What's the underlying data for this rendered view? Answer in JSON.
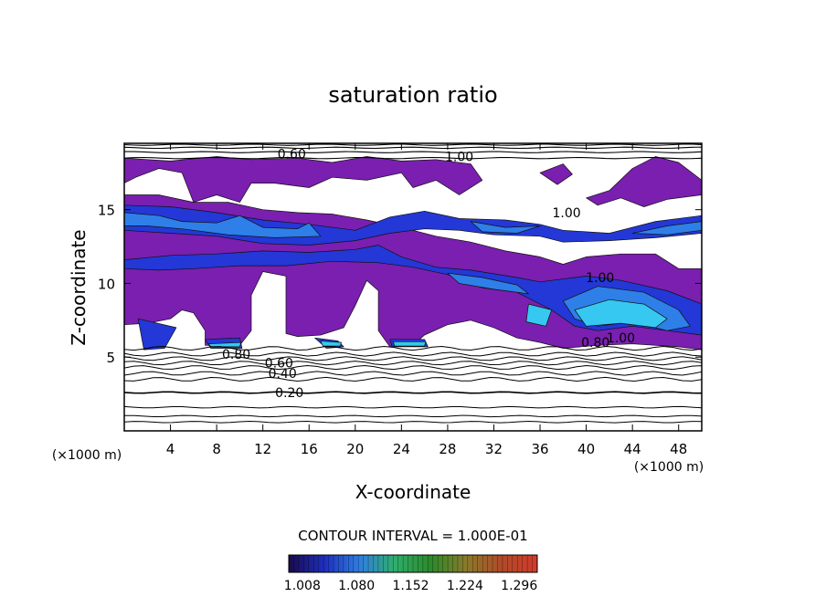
{
  "chart_data": {
    "type": "heatmap",
    "title": "saturation ratio",
    "xlabel": "X-coordinate",
    "ylabel": "Z-coordinate",
    "x_unit": "(×1000 m)",
    "z_unit": "(×1000 m)",
    "xlim": [
      0,
      50
    ],
    "ylim": [
      0,
      19.5
    ],
    "x_ticks": [
      "4",
      "8",
      "12",
      "16",
      "20",
      "24",
      "28",
      "32",
      "36",
      "40",
      "44",
      "48"
    ],
    "y_ticks": [
      "5",
      "10",
      "15"
    ],
    "contour_interval_text": "CONTOUR INTERVAL = 1.000E-01",
    "colorbar_ticks": [
      "1.008",
      "1.080",
      "1.152",
      "1.224",
      "1.296"
    ],
    "colorbar_range": [
      0.99,
      1.32
    ],
    "colorscale": [
      "#1a0a4a",
      "#1d2fbf",
      "#2f7fe0",
      "#2fae6a",
      "#2a8a2a",
      "#8a7a2a",
      "#b04a2a",
      "#d23b2b"
    ],
    "fill_colors": {
      "level_1": "#7a1fb0",
      "level_2": "#2338d6",
      "level_3": "#2f7fe8",
      "level_4": "#36c8f0"
    },
    "contour_labels": [
      {
        "text": "0.20",
        "x": 14.3,
        "z": 2.6
      },
      {
        "text": "0.40",
        "x": 13.7,
        "z": 3.9
      },
      {
        "text": "0.60",
        "x": 13.4,
        "z": 4.6
      },
      {
        "text": "0.80",
        "x": 9.7,
        "z": 5.2
      },
      {
        "text": "0.60",
        "x": 14.5,
        "z": 18.8
      },
      {
        "text": "0.80",
        "x": 40.8,
        "z": 6.0
      },
      {
        "text": "1.00",
        "x": 43.0,
        "z": 6.3
      },
      {
        "text": "1.00",
        "x": 38.3,
        "z": 14.8
      },
      {
        "text": "1.00",
        "x": 41.2,
        "z": 10.4
      },
      {
        "text": "1.00",
        "x": 29.0,
        "z": 18.6
      }
    ],
    "regions": [
      {
        "level": 1,
        "pts": [
          [
            0,
            18.5
          ],
          [
            4,
            18.3
          ],
          [
            8,
            18.6
          ],
          [
            11,
            18.4
          ],
          [
            15,
            18.5
          ],
          [
            18,
            18.2
          ],
          [
            21,
            18.6
          ],
          [
            24,
            18.3
          ],
          [
            27,
            18.4
          ],
          [
            30,
            18.1
          ],
          [
            31,
            17
          ],
          [
            29,
            16
          ],
          [
            27,
            17
          ],
          [
            25,
            16.5
          ],
          [
            24,
            17.5
          ],
          [
            21,
            17
          ],
          [
            18,
            17.2
          ],
          [
            16,
            16.5
          ],
          [
            13,
            16.8
          ],
          [
            11,
            16.8
          ],
          [
            10,
            15.5
          ],
          [
            8,
            16
          ],
          [
            6,
            15.5
          ],
          [
            5,
            17.5
          ],
          [
            3,
            17.8
          ],
          [
            1,
            17.2
          ],
          [
            0,
            16.8
          ]
        ]
      },
      {
        "level": 1,
        "pts": [
          [
            0,
            16
          ],
          [
            3,
            16
          ],
          [
            6,
            15.5
          ],
          [
            9,
            15.5
          ],
          [
            12,
            15
          ],
          [
            15,
            14.8
          ],
          [
            18,
            14.7
          ],
          [
            21,
            14.3
          ],
          [
            24,
            13.8
          ],
          [
            27,
            13.2
          ],
          [
            30,
            12.8
          ],
          [
            33,
            12.2
          ],
          [
            36,
            11.8
          ],
          [
            38,
            11.3
          ],
          [
            40,
            11.8
          ],
          [
            43,
            12
          ],
          [
            46,
            12
          ],
          [
            48,
            11
          ],
          [
            50,
            11
          ],
          [
            50,
            5.5
          ],
          [
            48,
            5.7
          ],
          [
            44,
            5.9
          ],
          [
            41,
            5.8
          ],
          [
            38,
            5.6
          ],
          [
            36,
            6
          ],
          [
            34,
            6.3
          ],
          [
            32,
            7
          ],
          [
            30,
            7.5
          ],
          [
            28,
            7.2
          ],
          [
            26,
            6.5
          ],
          [
            25,
            5.8
          ],
          [
            23,
            5.7
          ],
          [
            22,
            6.8
          ],
          [
            22,
            9.5
          ],
          [
            21,
            10.2
          ],
          [
            20,
            8.5
          ],
          [
            19,
            7
          ],
          [
            17,
            6.5
          ],
          [
            15,
            6.4
          ],
          [
            14,
            6.6
          ],
          [
            14,
            10.5
          ],
          [
            12,
            10.8
          ],
          [
            11,
            9.2
          ],
          [
            11,
            6.8
          ],
          [
            10,
            5.8
          ],
          [
            7,
            5.8
          ],
          [
            7,
            6.8
          ],
          [
            6,
            8
          ],
          [
            5,
            8.2
          ],
          [
            4,
            7.6
          ],
          [
            2,
            7.3
          ],
          [
            0,
            7.2
          ]
        ]
      },
      {
        "level": 1,
        "pts": [
          [
            40,
            15.8
          ],
          [
            42,
            16.3
          ],
          [
            44,
            17.8
          ],
          [
            46,
            18.6
          ],
          [
            48,
            18.2
          ],
          [
            50,
            17
          ],
          [
            50,
            16
          ],
          [
            47,
            15.7
          ],
          [
            45,
            15.2
          ],
          [
            43,
            15.8
          ],
          [
            41,
            15.3
          ]
        ]
      },
      {
        "level": 1,
        "pts": [
          [
            36,
            17.5
          ],
          [
            38,
            18.1
          ],
          [
            38.8,
            17.4
          ],
          [
            37.5,
            16.7
          ]
        ]
      },
      {
        "level": 2,
        "pts": [
          [
            0,
            15.3
          ],
          [
            4,
            15.2
          ],
          [
            8,
            14.8
          ],
          [
            12,
            14.3
          ],
          [
            16,
            14
          ],
          [
            20,
            13.6
          ],
          [
            23,
            14.5
          ],
          [
            26,
            14.9
          ],
          [
            29,
            14.4
          ],
          [
            33,
            14.3
          ],
          [
            36,
            14
          ],
          [
            38,
            13.6
          ],
          [
            42,
            13.4
          ],
          [
            46,
            14.2
          ],
          [
            50,
            14.6
          ],
          [
            50,
            13.4
          ],
          [
            46,
            13.1
          ],
          [
            42,
            12.9
          ],
          [
            38,
            12.8
          ],
          [
            36,
            13.2
          ],
          [
            32,
            13.3
          ],
          [
            29,
            13.6
          ],
          [
            26,
            13.7
          ],
          [
            23,
            13.4
          ],
          [
            20,
            12.9
          ],
          [
            16,
            12.6
          ],
          [
            12,
            12.7
          ],
          [
            8,
            13.2
          ],
          [
            4,
            13.4
          ],
          [
            0,
            13.6
          ]
        ]
      },
      {
        "level": 2,
        "pts": [
          [
            0,
            11.6
          ],
          [
            4,
            11.9
          ],
          [
            8,
            12
          ],
          [
            12,
            12.2
          ],
          [
            16,
            12.1
          ],
          [
            20,
            12.3
          ],
          [
            22,
            12.6
          ],
          [
            24,
            11.8
          ],
          [
            27,
            11.1
          ],
          [
            30,
            10.9
          ],
          [
            34,
            10.4
          ],
          [
            36,
            10.1
          ],
          [
            40,
            10.5
          ],
          [
            43,
            10.2
          ],
          [
            47,
            9.5
          ],
          [
            50,
            8.6
          ],
          [
            50,
            6.5
          ],
          [
            47,
            6.8
          ],
          [
            44,
            7.1
          ],
          [
            41,
            6.8
          ],
          [
            39,
            7.1
          ],
          [
            37,
            8.2
          ],
          [
            34,
            9.4
          ],
          [
            31,
            9.7
          ],
          [
            28,
            10.6
          ],
          [
            25,
            11.1
          ],
          [
            22,
            11.4
          ],
          [
            18,
            11.5
          ],
          [
            14,
            11.2
          ],
          [
            10,
            11.2
          ],
          [
            6,
            11
          ],
          [
            3,
            10.9
          ],
          [
            0,
            11
          ]
        ]
      },
      {
        "level": 2,
        "pts": [
          [
            1.2,
            7.6
          ],
          [
            1.7,
            5.5
          ],
          [
            3.5,
            5.6
          ],
          [
            4.5,
            7.0
          ]
        ]
      },
      {
        "level": 2,
        "pts": [
          [
            7,
            6.2
          ],
          [
            10,
            6.3
          ],
          [
            10.2,
            5.6
          ],
          [
            7.5,
            5.6
          ]
        ]
      },
      {
        "level": 2,
        "pts": [
          [
            16.5,
            6.3
          ],
          [
            18.5,
            6.1
          ],
          [
            19,
            5.7
          ],
          [
            17.5,
            5.6
          ]
        ]
      },
      {
        "level": 2,
        "pts": [
          [
            23,
            6.2
          ],
          [
            26,
            6.2
          ],
          [
            26.3,
            5.7
          ],
          [
            23.2,
            5.7
          ]
        ]
      },
      {
        "level": 3,
        "pts": [
          [
            0,
            14.8
          ],
          [
            3,
            14.6
          ],
          [
            5,
            14.2
          ],
          [
            8,
            14.1
          ],
          [
            10,
            14.6
          ],
          [
            12,
            13.8
          ],
          [
            15,
            13.7
          ],
          [
            16,
            14.1
          ],
          [
            17,
            13.2
          ],
          [
            13,
            13.1
          ],
          [
            9,
            13.3
          ],
          [
            5,
            13.7
          ],
          [
            2,
            13.9
          ],
          [
            0,
            13.9
          ]
        ]
      },
      {
        "level": 3,
        "pts": [
          [
            30,
            14.2
          ],
          [
            33,
            13.8
          ],
          [
            36,
            13.9
          ],
          [
            34,
            13.4
          ],
          [
            31,
            13.5
          ]
        ]
      },
      {
        "level": 3,
        "pts": [
          [
            44,
            13.4
          ],
          [
            47,
            13.9
          ],
          [
            50,
            14.2
          ],
          [
            50,
            13.6
          ],
          [
            47,
            13.3
          ]
        ]
      },
      {
        "level": 3,
        "pts": [
          [
            28,
            10.7
          ],
          [
            31,
            10.4
          ],
          [
            34,
            9.9
          ],
          [
            35,
            9.3
          ],
          [
            32,
            9.6
          ],
          [
            29,
            10
          ]
        ]
      },
      {
        "level": 3,
        "pts": [
          [
            38,
            8.8
          ],
          [
            41,
            9.8
          ],
          [
            45,
            9.4
          ],
          [
            48,
            8.2
          ],
          [
            49,
            7.1
          ],
          [
            47,
            6.8
          ],
          [
            44,
            7.4
          ],
          [
            41,
            7.1
          ],
          [
            39,
            7.6
          ]
        ]
      },
      {
        "level": 4,
        "pts": [
          [
            35,
            8.6
          ],
          [
            37,
            8.2
          ],
          [
            36.5,
            7.1
          ],
          [
            34.8,
            7.4
          ]
        ]
      },
      {
        "level": 4,
        "pts": [
          [
            39,
            8.2
          ],
          [
            42,
            8.9
          ],
          [
            45,
            8.6
          ],
          [
            47,
            7.6
          ],
          [
            46,
            7.0
          ],
          [
            43,
            7.3
          ],
          [
            40,
            7.1
          ]
        ]
      },
      {
        "level": 4,
        "pts": [
          [
            7.3,
            5.9
          ],
          [
            10.1,
            6.0
          ],
          [
            10,
            5.7
          ],
          [
            7.5,
            5.7
          ]
        ]
      },
      {
        "level": 4,
        "pts": [
          [
            17,
            6.1
          ],
          [
            18.8,
            6.0
          ],
          [
            18.7,
            5.75
          ],
          [
            17.2,
            5.75
          ]
        ]
      },
      {
        "level": 4,
        "pts": [
          [
            23.3,
            6.05
          ],
          [
            26.1,
            6.05
          ],
          [
            26,
            5.75
          ],
          [
            23.4,
            5.75
          ]
        ]
      }
    ],
    "contour_levels_low": [
      0.6,
      1.0,
      1.6,
      2.6,
      3.5,
      3.9,
      4.3,
      4.6,
      4.9,
      5.2,
      5.6
    ],
    "contour_levels_top": [
      18.5,
      18.9,
      19.2,
      19.4
    ]
  }
}
